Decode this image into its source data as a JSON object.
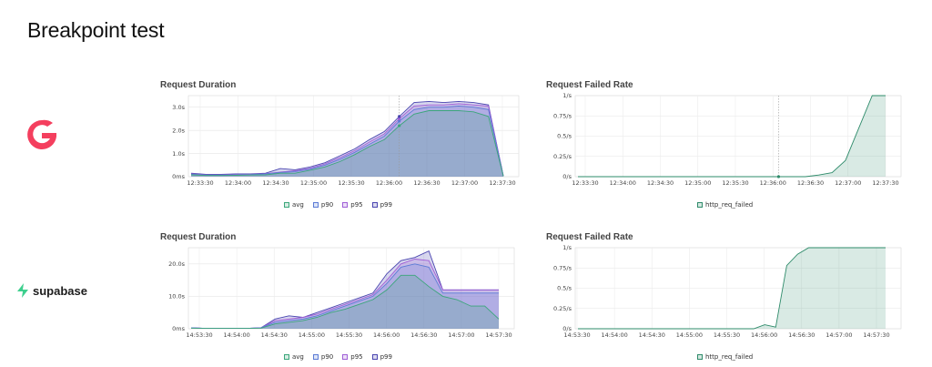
{
  "page": {
    "title": "Breakpoint test",
    "colors": {
      "avg": "#3aa67a",
      "p90": "#5b7bd5",
      "p95": "#9f5fd6",
      "p99": "#4a45b0",
      "failed": "#2e8b6a",
      "brand_top": "#f43f5e",
      "brand_bottom": "#3ecf8e"
    }
  },
  "logos": {
    "top": {
      "icon": "grafbase-logo-icon"
    },
    "bottom": {
      "icon": "supabase-bolt-icon",
      "text": "supabase"
    }
  },
  "chart_data": [
    {
      "id": "top-duration",
      "type": "area",
      "title": "Request Duration",
      "x_ticks": [
        "12:33:30",
        "12:34:00",
        "12:34:30",
        "12:35:00",
        "12:35:30",
        "12:36:00",
        "12:36:30",
        "12:37:00",
        "12:37:30"
      ],
      "y_ticks": [
        "0ms",
        "1.0s",
        "2.0s",
        "3.0s"
      ],
      "ylim": [
        0,
        3.5
      ],
      "cursor_at_index": 14,
      "series": [
        {
          "name": "avg",
          "values": [
            0.08,
            0.05,
            0.05,
            0.06,
            0.07,
            0.08,
            0.15,
            0.15,
            0.28,
            0.42,
            0.65,
            0.95,
            1.3,
            1.6,
            2.2,
            2.7,
            2.85,
            2.85,
            2.85,
            2.8,
            2.6,
            0.02
          ]
        },
        {
          "name": "p90",
          "values": [
            0.1,
            0.07,
            0.07,
            0.08,
            0.09,
            0.12,
            0.18,
            0.22,
            0.33,
            0.5,
            0.75,
            1.05,
            1.4,
            1.75,
            2.4,
            2.9,
            3.0,
            3.0,
            3.05,
            3.0,
            2.9,
            0.03
          ]
        },
        {
          "name": "p95",
          "values": [
            0.12,
            0.08,
            0.08,
            0.1,
            0.1,
            0.13,
            0.2,
            0.26,
            0.36,
            0.55,
            0.82,
            1.12,
            1.5,
            1.85,
            2.5,
            3.05,
            3.1,
            3.1,
            3.15,
            3.1,
            3.05,
            0.03
          ]
        },
        {
          "name": "p99",
          "values": [
            0.15,
            0.1,
            0.1,
            0.12,
            0.12,
            0.15,
            0.35,
            0.3,
            0.42,
            0.6,
            0.9,
            1.2,
            1.6,
            1.95,
            2.6,
            3.2,
            3.25,
            3.2,
            3.25,
            3.2,
            3.1,
            0.03
          ]
        }
      ],
      "legend": [
        "avg",
        "p90",
        "p95",
        "p99"
      ]
    },
    {
      "id": "top-failed",
      "type": "area",
      "title": "Request Failed Rate",
      "x_ticks": [
        "12:33:30",
        "12:34:00",
        "12:34:30",
        "12:35:00",
        "12:35:30",
        "12:36:00",
        "12:36:30",
        "12:37:00",
        "12:37:30"
      ],
      "y_ticks": [
        "0/s",
        "0.25/s",
        "0.5/s",
        "0.75/s",
        "1/s"
      ],
      "ylim": [
        0,
        1
      ],
      "cursor_at_index": 15,
      "series": [
        {
          "name": "http_req_failed",
          "values": [
            0,
            0,
            0,
            0,
            0,
            0,
            0,
            0,
            0,
            0,
            0,
            0,
            0,
            0,
            0,
            0,
            0,
            0,
            0.02,
            0.05,
            0.2,
            0.6,
            1,
            1
          ]
        }
      ],
      "legend": [
        "http_req_failed"
      ]
    },
    {
      "id": "bottom-duration",
      "type": "area",
      "title": "Request Duration",
      "x_ticks": [
        "14:53:30",
        "14:54:00",
        "14:54:30",
        "14:55:00",
        "14:55:30",
        "14:56:00",
        "14:56:30",
        "14:57:00",
        "14:57:30"
      ],
      "y_ticks": [
        "0ms",
        "10.0s",
        "20.0s"
      ],
      "ylim": [
        0,
        25
      ],
      "series": [
        {
          "name": "avg",
          "values": [
            0.2,
            0.1,
            0.1,
            0.1,
            0.1,
            0.2,
            1.5,
            2,
            2.5,
            3.5,
            5,
            6,
            7.5,
            9,
            12,
            16.5,
            16.5,
            13,
            10,
            9,
            7,
            7,
            3
          ]
        },
        {
          "name": "p90",
          "values": [
            0.3,
            0.1,
            0.1,
            0.1,
            0.1,
            0.3,
            2,
            2.5,
            3,
            4,
            5.5,
            7,
            8.5,
            10,
            14,
            19,
            20,
            19,
            11,
            11,
            11,
            11,
            11
          ]
        },
        {
          "name": "p95",
          "values": [
            0.3,
            0.1,
            0.1,
            0.1,
            0.1,
            0.3,
            2.5,
            3,
            3.5,
            4.5,
            6,
            7.5,
            9,
            10.5,
            15,
            20,
            21.5,
            21,
            12,
            12,
            12,
            12,
            12
          ]
        },
        {
          "name": "p99",
          "values": [
            0.3,
            0.1,
            0.1,
            0.1,
            0.1,
            0.3,
            3,
            4,
            3.5,
            5,
            6.5,
            8,
            9.5,
            11,
            17,
            21,
            22,
            24,
            12,
            12,
            12,
            12,
            12
          ]
        }
      ],
      "legend": [
        "avg",
        "p90",
        "p95",
        "p99"
      ]
    },
    {
      "id": "bottom-failed",
      "type": "area",
      "title": "Request Failed Rate",
      "x_ticks": [
        "14:53:30",
        "14:54:00",
        "14:54:30",
        "14:55:00",
        "14:55:30",
        "14:56:00",
        "14:56:30",
        "14:57:00",
        "14:57:30"
      ],
      "y_ticks": [
        "0/s",
        "0.25/s",
        "0.5/s",
        "0.75/s",
        "1/s"
      ],
      "ylim": [
        0,
        1
      ],
      "series": [
        {
          "name": "http_req_failed",
          "values": [
            0,
            0,
            0,
            0,
            0,
            0,
            0,
            0,
            0,
            0,
            0,
            0,
            0,
            0,
            0,
            0,
            0,
            0.05,
            0.02,
            0.78,
            0.92,
            1,
            1,
            1,
            1,
            1,
            1,
            1,
            1
          ]
        }
      ],
      "legend": [
        "http_req_failed"
      ]
    }
  ]
}
